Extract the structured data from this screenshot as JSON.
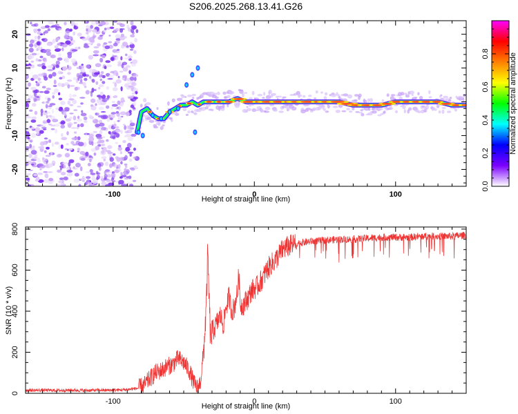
{
  "figure": {
    "title": "S206.2025.268.13.41.G26"
  },
  "chart_data": [
    {
      "type": "heatmap",
      "title": "S206.2025.268.13.41.G26",
      "xlabel": "Height of straight line (km)",
      "ylabel": "Frequency (Hz)",
      "xlim": [
        -162,
        150
      ],
      "ylim": [
        -25,
        24
      ],
      "xticks": [
        "-100",
        "0",
        "100"
      ],
      "yticks": [
        "-20",
        "-10",
        "0",
        "10",
        "20"
      ],
      "noise_region_x": [
        -162,
        -83
      ],
      "track_x": [
        -83,
        -80,
        -76,
        -72,
        -68,
        -64,
        -60,
        -56,
        -52,
        -48,
        -44,
        -40,
        -36,
        -30,
        -24,
        -18,
        -12,
        -6,
        0,
        10,
        20,
        30,
        40,
        50,
        60,
        70,
        80,
        90,
        100,
        110,
        120,
        130,
        140,
        150
      ],
      "track_y": [
        -9,
        -3,
        -2,
        -4,
        -5,
        -5,
        -3,
        -2,
        -1,
        -1,
        0,
        -1,
        0,
        0,
        0,
        0,
        1,
        0,
        0,
        0,
        0,
        0,
        0,
        0,
        0,
        -1,
        -1,
        -1,
        0,
        0,
        0,
        0,
        -1,
        -1
      ],
      "colorbar": {
        "label": "Normalized spectral amplitude",
        "range": [
          0,
          1
        ],
        "ticks": [
          "0.0",
          "0.2",
          "0.4",
          "0.6",
          "0.8"
        ],
        "colors": [
          "#ffffff",
          "#7b00ff",
          "#0000ff",
          "#00ffff",
          "#00ff00",
          "#ffff00",
          "#ff8000",
          "#ff0000",
          "#ff00ff"
        ]
      }
    },
    {
      "type": "line",
      "xlabel": "Height of straight line (km)",
      "ylabel": "SNR (10 * v/v)",
      "xlim": [
        -162,
        150
      ],
      "ylim": [
        0,
        810
      ],
      "xticks": [
        "-100",
        "0",
        "100"
      ],
      "yticks": [
        "0",
        "200",
        "400",
        "600",
        "800"
      ],
      "series": [
        {
          "name": "SNR",
          "color": "#ee3333",
          "x": [
            -162,
            -150,
            -140,
            -130,
            -120,
            -110,
            -100,
            -90,
            -82,
            -78,
            -74,
            -70,
            -66,
            -62,
            -58,
            -54,
            -50,
            -46,
            -44,
            -42,
            -40,
            -38,
            -36,
            -34,
            -33,
            -32,
            -31,
            -30,
            -28,
            -26,
            -24,
            -22,
            -20,
            -18,
            -16,
            -14,
            -13,
            -12,
            -11,
            -10,
            -8,
            -6,
            -4,
            -2,
            0,
            2,
            4,
            6,
            8,
            10,
            12,
            14,
            16,
            18,
            20,
            22,
            24,
            26,
            28,
            30,
            40,
            50,
            60,
            70,
            80,
            90,
            100,
            110,
            120,
            130,
            140,
            150
          ],
          "y": [
            15,
            15,
            14,
            15,
            14,
            15,
            15,
            18,
            25,
            40,
            70,
            100,
            110,
            130,
            140,
            170,
            150,
            110,
            70,
            40,
            25,
            60,
            200,
            420,
            680,
            450,
            250,
            300,
            320,
            350,
            380,
            330,
            420,
            470,
            400,
            420,
            470,
            480,
            590,
            430,
            430,
            450,
            470,
            500,
            510,
            520,
            540,
            560,
            590,
            610,
            630,
            640,
            660,
            680,
            700,
            710,
            715,
            720,
            725,
            730,
            740,
            745,
            750,
            750,
            755,
            760,
            760,
            760,
            765,
            765,
            765,
            770
          ]
        }
      ]
    }
  ]
}
